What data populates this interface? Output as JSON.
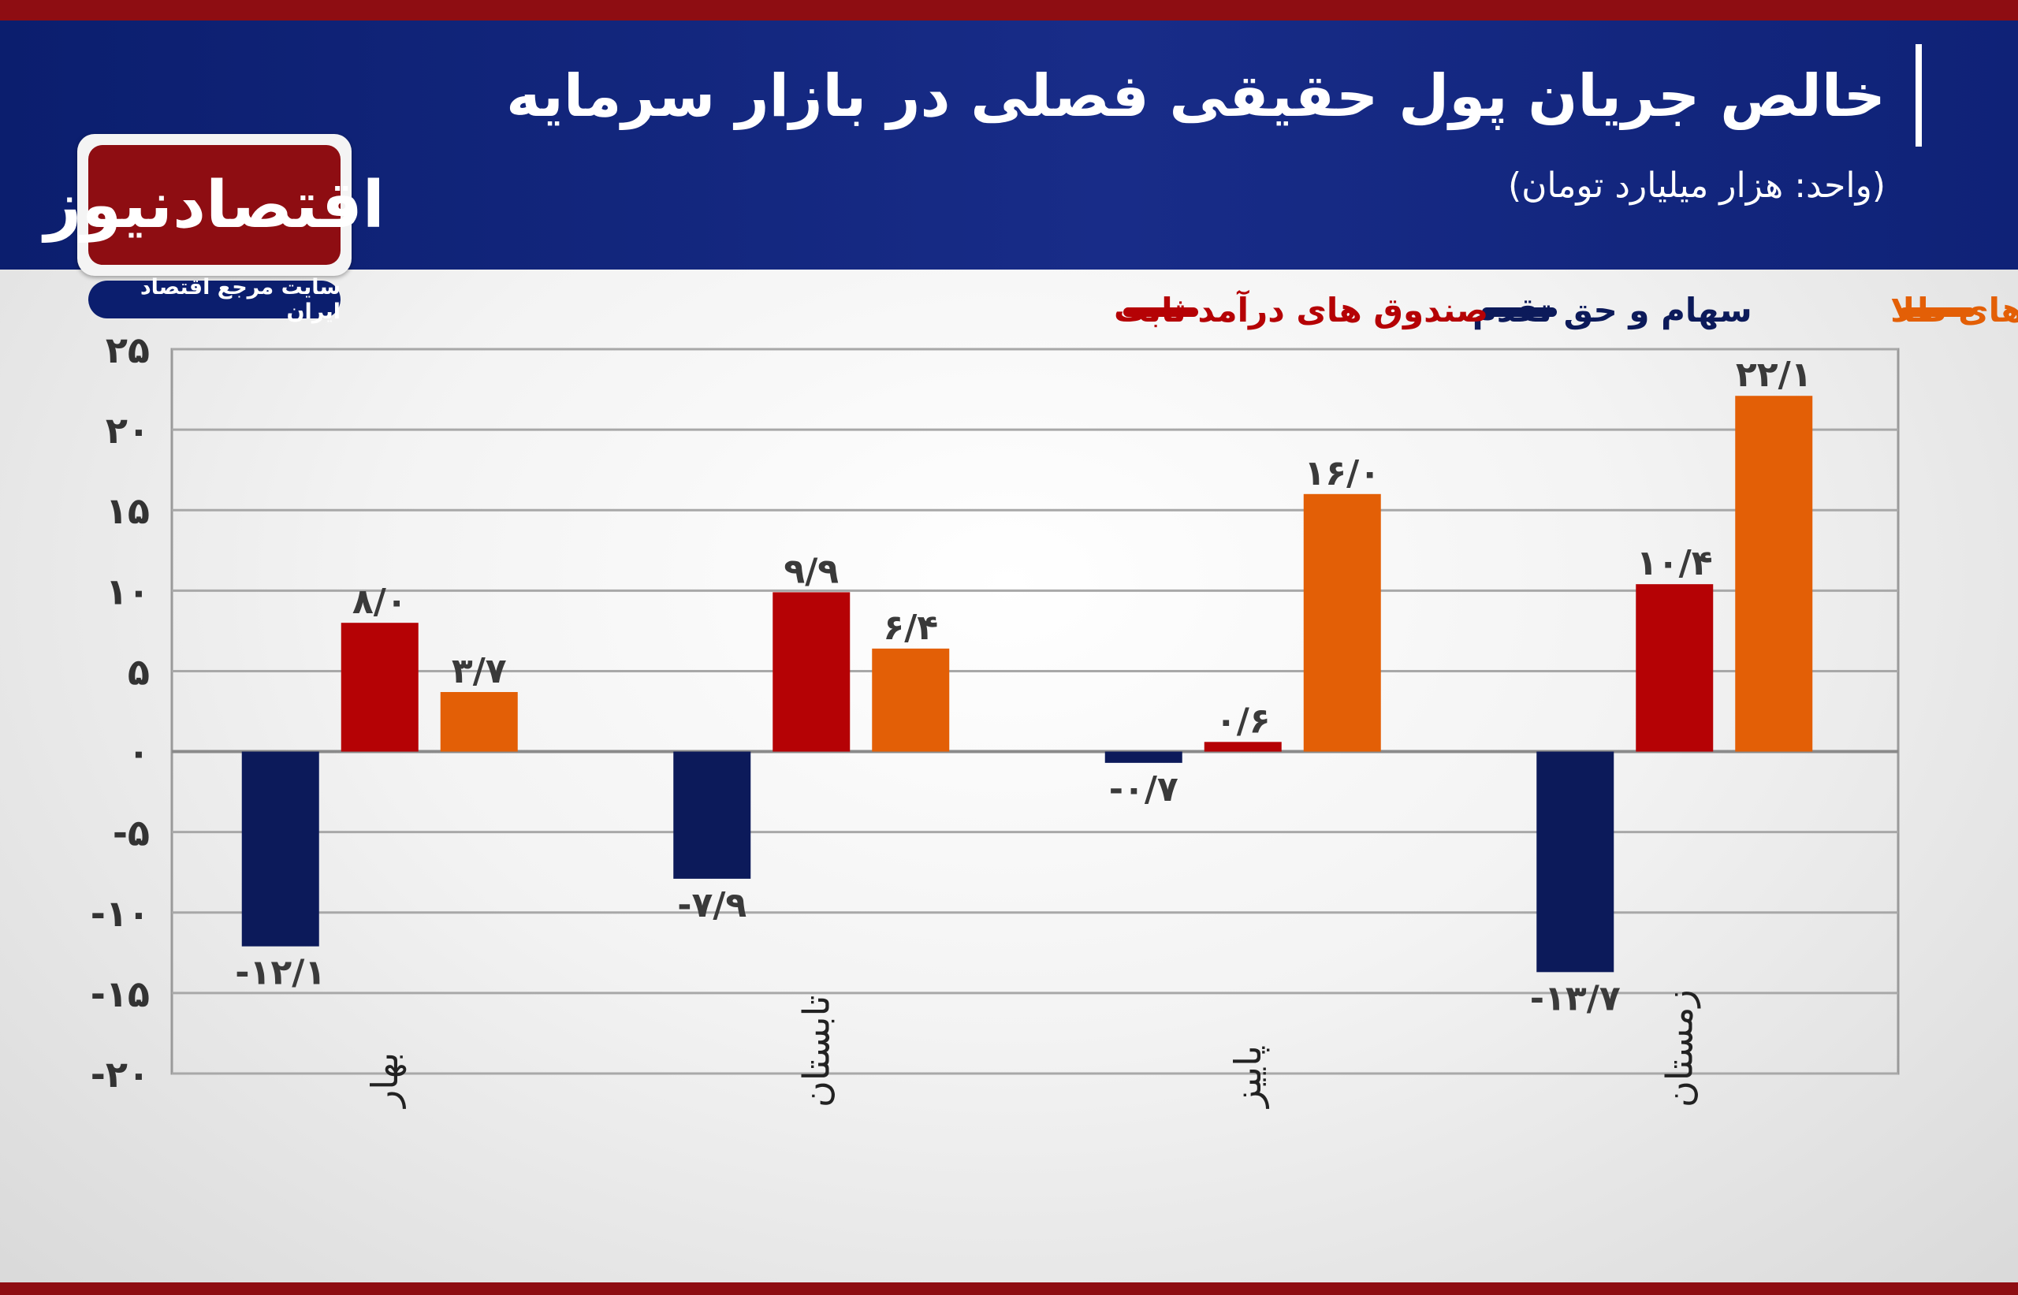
{
  "header": {
    "title": "خالص جریان پول حقیقی فصلی در بازار سرمایه",
    "subtitle": "(واحد: هزار میلیارد تومان)"
  },
  "logo": {
    "name": "اقتصادنیوز",
    "tagline": "سایت مرجع اقتصاد ایران"
  },
  "colors": {
    "header_bg": "#132685",
    "stripe": "#8e0d12",
    "stocks": "#0c1a5a",
    "fixed_income": "#b50205",
    "gold": "#e35f06"
  },
  "chart_data": {
    "type": "bar",
    "categories": [
      "بهار",
      "تابستان",
      "پاییز",
      "زمستان"
    ],
    "series": [
      {
        "name": "سهام و حق تقدم",
        "color": "#0c1a5a",
        "values": [
          -12.1,
          -7.9,
          -0.7,
          -13.7
        ],
        "labels": [
          "-۱۲/۱",
          "-۷/۹",
          "-۰/۷",
          "-۱۳/۷"
        ]
      },
      {
        "name": "صندوق های درآمد ثابت",
        "color": "#b50205",
        "values": [
          8.0,
          9.9,
          0.6,
          10.4
        ],
        "labels": [
          "۸/۰",
          "۹/۹",
          "۰/۶",
          "۱۰/۴"
        ]
      },
      {
        "name": "صندوق های طلا",
        "color": "#e35f06",
        "values": [
          3.7,
          6.4,
          16.0,
          22.1
        ],
        "labels": [
          "۳/۷",
          "۶/۴",
          "۱۶/۰",
          "۲۲/۱"
        ]
      }
    ],
    "legend_order": [
      "صندوق های طلا",
      "سهام و حق تقدم",
      "صندوق های درآمد ثابت"
    ],
    "yticks": [
      25,
      20,
      15,
      10,
      5,
      0,
      -5,
      -10,
      -15,
      -20
    ],
    "ytick_labels": [
      "۲۵",
      "۲۰",
      "۱۵",
      "۱۰",
      "۵",
      "۰",
      "-۵",
      "-۱۰",
      "-۱۵",
      "-۲۰"
    ],
    "ylim": [
      -20,
      25
    ],
    "grid": true,
    "legend_position": "top"
  }
}
